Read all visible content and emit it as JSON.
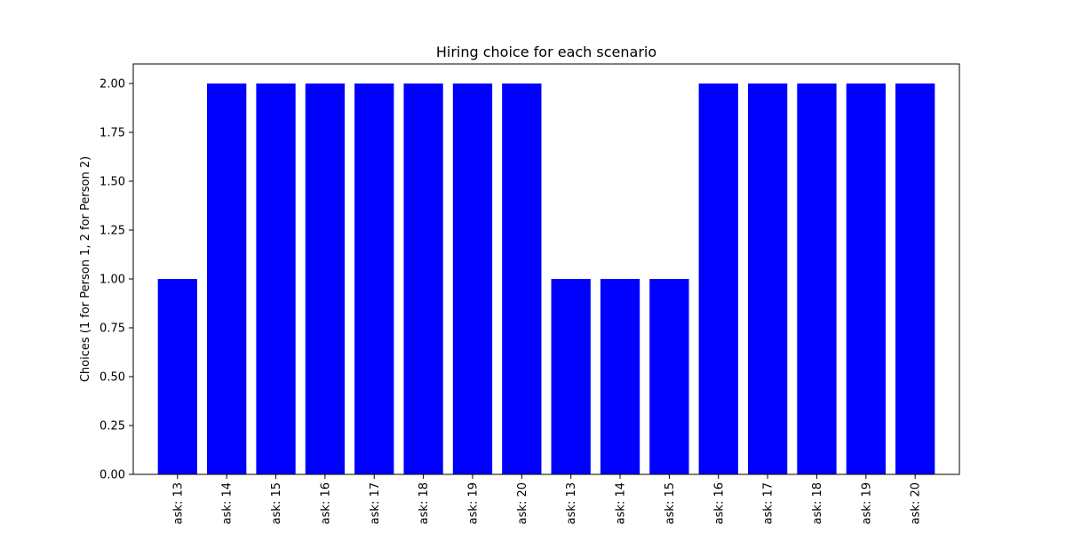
{
  "chart_data": {
    "type": "bar",
    "title": "Hiring choice for each scenario",
    "xlabel": "",
    "ylabel": "Choices (1 for Person 1, 2 for Person 2)",
    "categories": [
      "ask: 13",
      "ask: 14",
      "ask: 15",
      "ask: 16",
      "ask: 17",
      "ask: 18",
      "ask: 19",
      "ask: 20",
      "ask: 13",
      "ask: 14",
      "ask: 15",
      "ask: 16",
      "ask: 17",
      "ask: 18",
      "ask: 19",
      "ask: 20"
    ],
    "values": [
      1,
      2,
      2,
      2,
      2,
      2,
      2,
      2,
      1,
      1,
      1,
      2,
      2,
      2,
      2,
      2
    ],
    "ylim": [
      0,
      2.1
    ],
    "yticks": [
      "0.00",
      "0.25",
      "0.50",
      "0.75",
      "1.00",
      "1.25",
      "1.50",
      "1.75",
      "2.00"
    ],
    "bar_color": "#0000ff",
    "grid": false,
    "legend": "none"
  }
}
